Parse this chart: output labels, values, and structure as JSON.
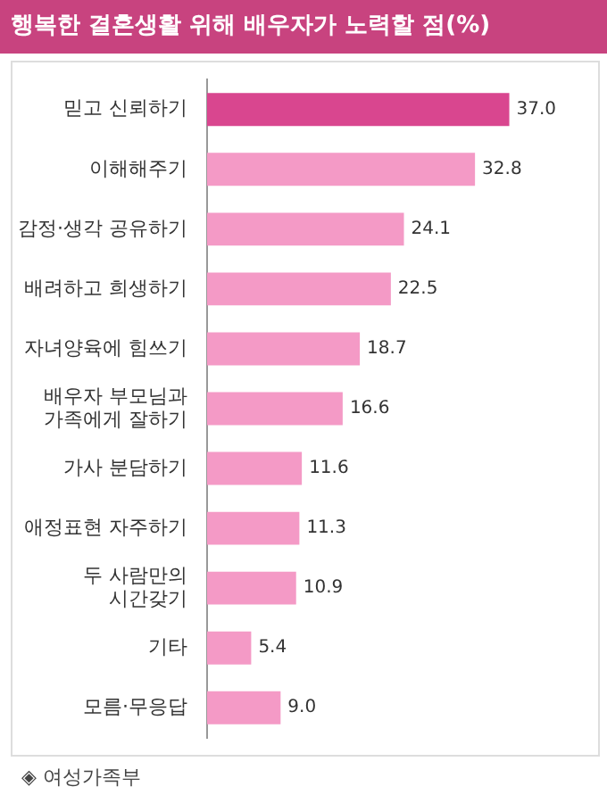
{
  "chart_data": {
    "type": "bar",
    "orientation": "horizontal",
    "title": "행복한 결혼생활 위해 배우자가 노력할 점(%)",
    "categories": [
      "믿고 신뢰하기",
      "이해해주기",
      "감정·생각 공유하기",
      "배려하고 희생하기",
      "자녀양육에 힘쓰기",
      "배우자 부모님과\n가족에게 잘하기",
      "가사 분담하기",
      "애정표현 자주하기",
      "두 사람만의\n시간갖기",
      "기타",
      "모름·무응답"
    ],
    "values": [
      37.0,
      32.8,
      24.1,
      22.5,
      18.7,
      16.6,
      11.6,
      11.3,
      10.9,
      5.4,
      9.0
    ],
    "colors": [
      "#d9468f",
      "#f49ac6",
      "#f49ac6",
      "#f49ac6",
      "#f49ac6",
      "#f49ac6",
      "#f49ac6",
      "#f49ac6",
      "#f49ac6",
      "#f49ac6",
      "#f49ac6"
    ],
    "value_labels": [
      "37.0",
      "32.8",
      "24.1",
      "22.5",
      "18.7",
      "16.6",
      "11.6",
      "11.3",
      "10.9",
      "5.4",
      "9.0"
    ],
    "annotations": [
      "◈ 여성가족부"
    ]
  }
}
